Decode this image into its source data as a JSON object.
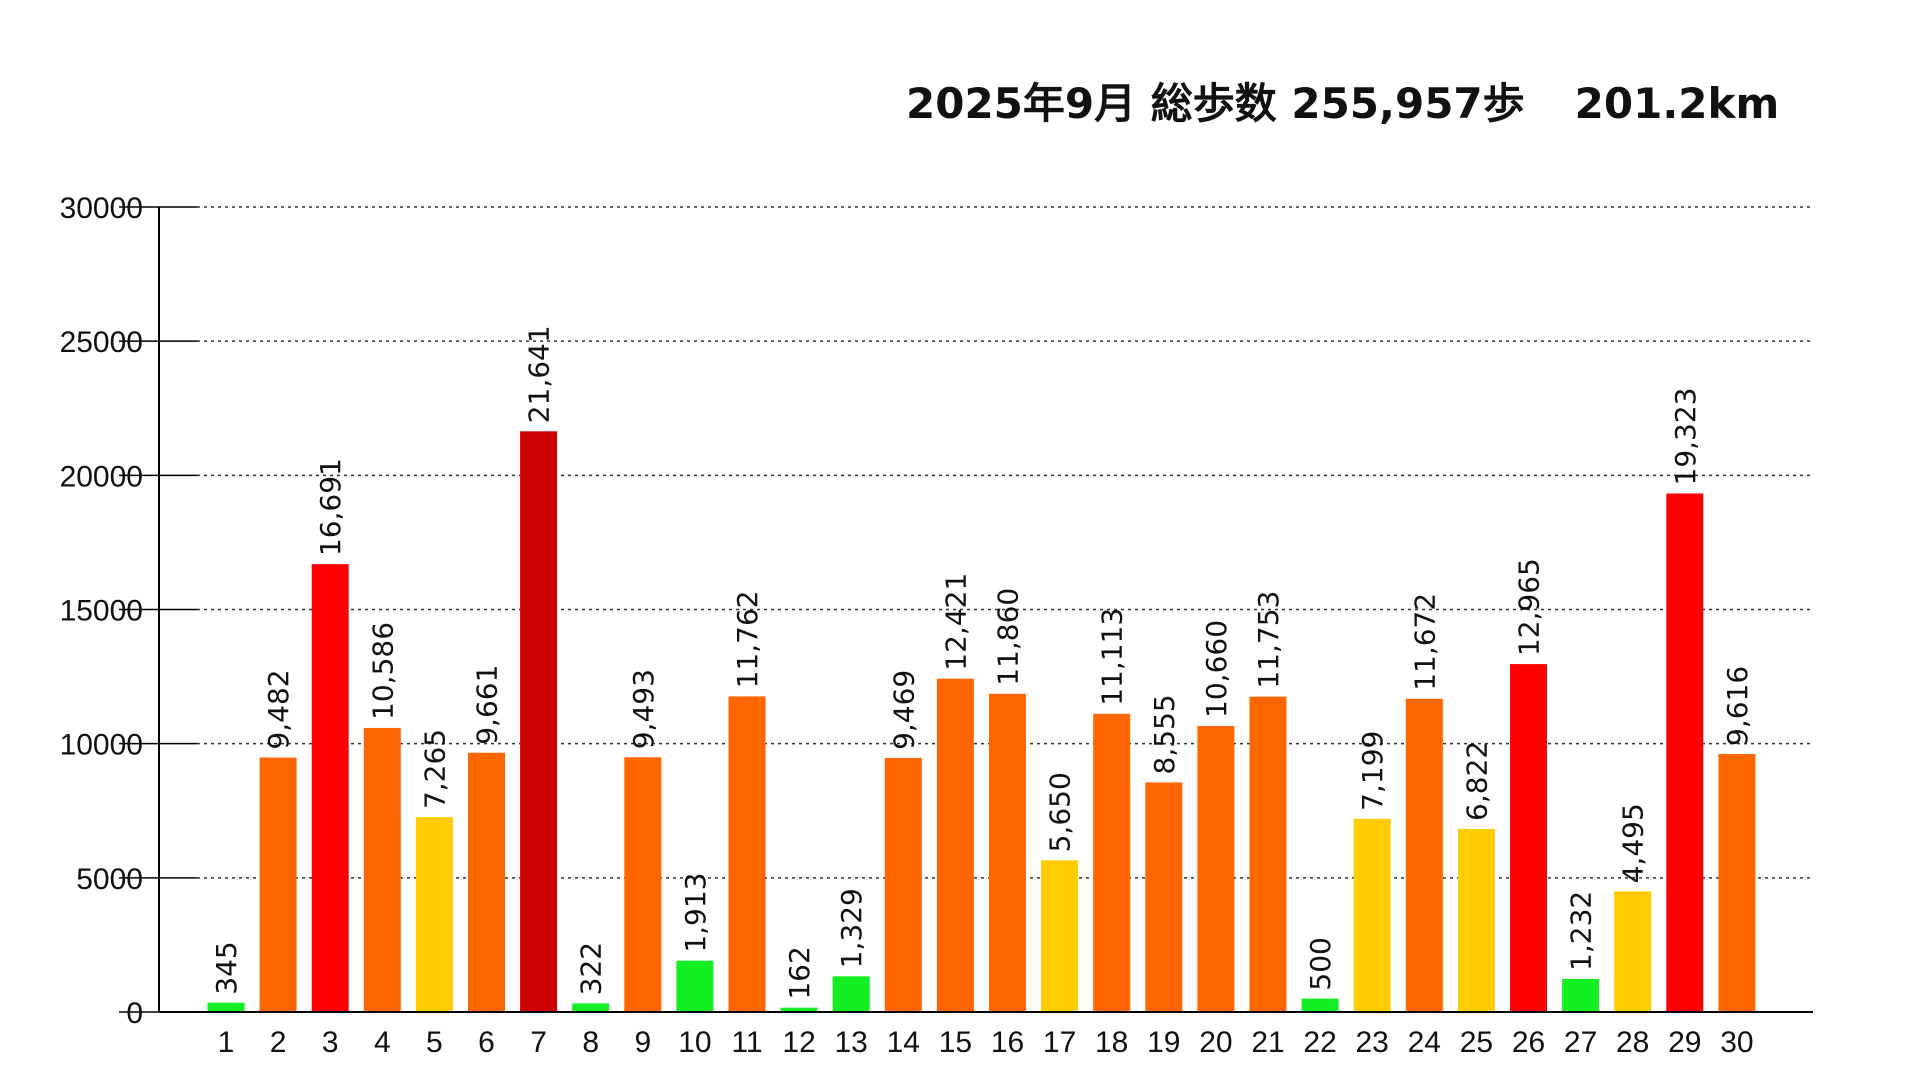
{
  "chart_data": {
    "type": "bar",
    "title": "2025年9月 総歩数 255,957歩　201.2km",
    "title_main": "2025年9月 総歩数 255,957歩",
    "title_distance": "201.2km",
    "xlabel": "",
    "ylabel": "",
    "ylim": [
      0,
      30000
    ],
    "yticks": [
      0,
      5000,
      10000,
      15000,
      20000,
      25000,
      30000
    ],
    "grid": true,
    "categories": [
      "1",
      "2",
      "3",
      "4",
      "5",
      "6",
      "7",
      "8",
      "9",
      "10",
      "11",
      "12",
      "13",
      "14",
      "15",
      "16",
      "17",
      "18",
      "19",
      "20",
      "21",
      "22",
      "23",
      "24",
      "25",
      "26",
      "27",
      "28",
      "29",
      "30"
    ],
    "values": [
      345,
      9482,
      16691,
      10586,
      7265,
      9661,
      21641,
      322,
      9493,
      1913,
      11762,
      162,
      1329,
      9469,
      12421,
      11860,
      5650,
      11113,
      8555,
      10660,
      11753,
      500,
      7199,
      11672,
      6822,
      12965,
      1232,
      4495,
      19323,
      9616
    ],
    "labels": [
      "345",
      "9,482",
      "16,691",
      "10,586",
      "7,265",
      "9,661",
      "21,641",
      "322",
      "9,493",
      "1,913",
      "11,762",
      "162",
      "1,329",
      "9,469",
      "12,421",
      "11,860",
      "5,650",
      "11,113",
      "8,555",
      "10,660",
      "11,753",
      "500",
      "7,199",
      "11,672",
      "6,822",
      "12,965",
      "1,232",
      "4,495",
      "19,323",
      "9,616"
    ],
    "colors": [
      "#11ee22",
      "#ff6600",
      "#ff0000",
      "#ff6600",
      "#ffcc00",
      "#ff6600",
      "#cc0000",
      "#11ee22",
      "#ff6600",
      "#11ee22",
      "#ff6600",
      "#11ee22",
      "#11ee22",
      "#ff6600",
      "#ff6600",
      "#ff6600",
      "#ffcc00",
      "#ff6600",
      "#ff6600",
      "#ff6600",
      "#ff6600",
      "#11ee22",
      "#ffcc00",
      "#ff6600",
      "#ffcc00",
      "#ff0000",
      "#11ee22",
      "#ffcc00",
      "#ff0000",
      "#ff6600"
    ]
  }
}
